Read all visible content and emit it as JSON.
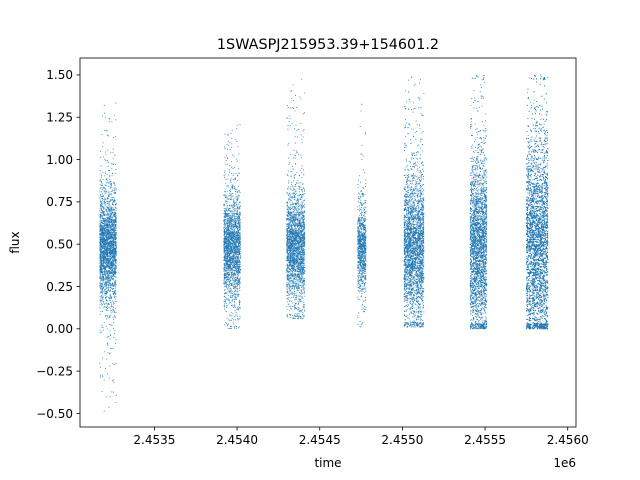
{
  "chart_data": {
    "type": "scatter",
    "title": "1SWASPJ215953.39+154601.2",
    "xlabel": "time",
    "ylabel": "flux",
    "x_offset_label": "1e6",
    "xlim": [
      2.45305,
      2.45605
    ],
    "ylim": [
      -0.58,
      1.6
    ],
    "x_ticks": [
      2.4535,
      2.454,
      2.4545,
      2.455,
      2.4555,
      2.456
    ],
    "x_tick_labels": [
      "2.4535",
      "2.4540",
      "2.4545",
      "2.4550",
      "2.4555",
      "2.4560"
    ],
    "y_ticks": [
      -0.5,
      -0.25,
      0.0,
      0.25,
      0.5,
      0.75,
      1.0,
      1.25,
      1.5
    ],
    "y_tick_labels": [
      "−0.50",
      "−0.25",
      "0.00",
      "0.25",
      "0.50",
      "0.75",
      "1.00",
      "1.25",
      "1.50"
    ],
    "grid": false,
    "legend": "none",
    "point_color": "#1f77b4",
    "series": [
      {
        "clusters": [
          {
            "x_range": [
              2.45317,
              2.45327
            ],
            "median": 0.48,
            "core_low": 0.22,
            "core_high": 0.72,
            "min": -0.49,
            "max": 1.38,
            "points": 2600
          },
          {
            "x_range": [
              2.45392,
              2.45402
            ],
            "median": 0.48,
            "core_low": 0.25,
            "core_high": 0.72,
            "min": 0.0,
            "max": 1.22,
            "points": 2200
          },
          {
            "x_range": [
              2.4543,
              2.45441
            ],
            "median": 0.48,
            "core_low": 0.24,
            "core_high": 0.73,
            "min": 0.06,
            "max": 1.49,
            "points": 2400
          },
          {
            "x_range": [
              2.45473,
              2.45478
            ],
            "median": 0.48,
            "core_low": 0.27,
            "core_high": 0.68,
            "min": 0.01,
            "max": 1.48,
            "points": 900
          },
          {
            "x_range": [
              2.45501,
              2.45513
            ],
            "median": 0.48,
            "core_low": 0.15,
            "core_high": 0.8,
            "min": 0.01,
            "max": 1.49,
            "points": 3200
          },
          {
            "x_range": [
              2.45541,
              2.45551
            ],
            "median": 0.48,
            "core_low": 0.1,
            "core_high": 0.9,
            "min": 0.0,
            "max": 1.5,
            "points": 3000
          },
          {
            "x_range": [
              2.45575,
              2.45588
            ],
            "median": 0.5,
            "core_low": 0.05,
            "core_high": 1.0,
            "min": 0.0,
            "max": 1.5,
            "points": 4600
          }
        ]
      }
    ]
  }
}
